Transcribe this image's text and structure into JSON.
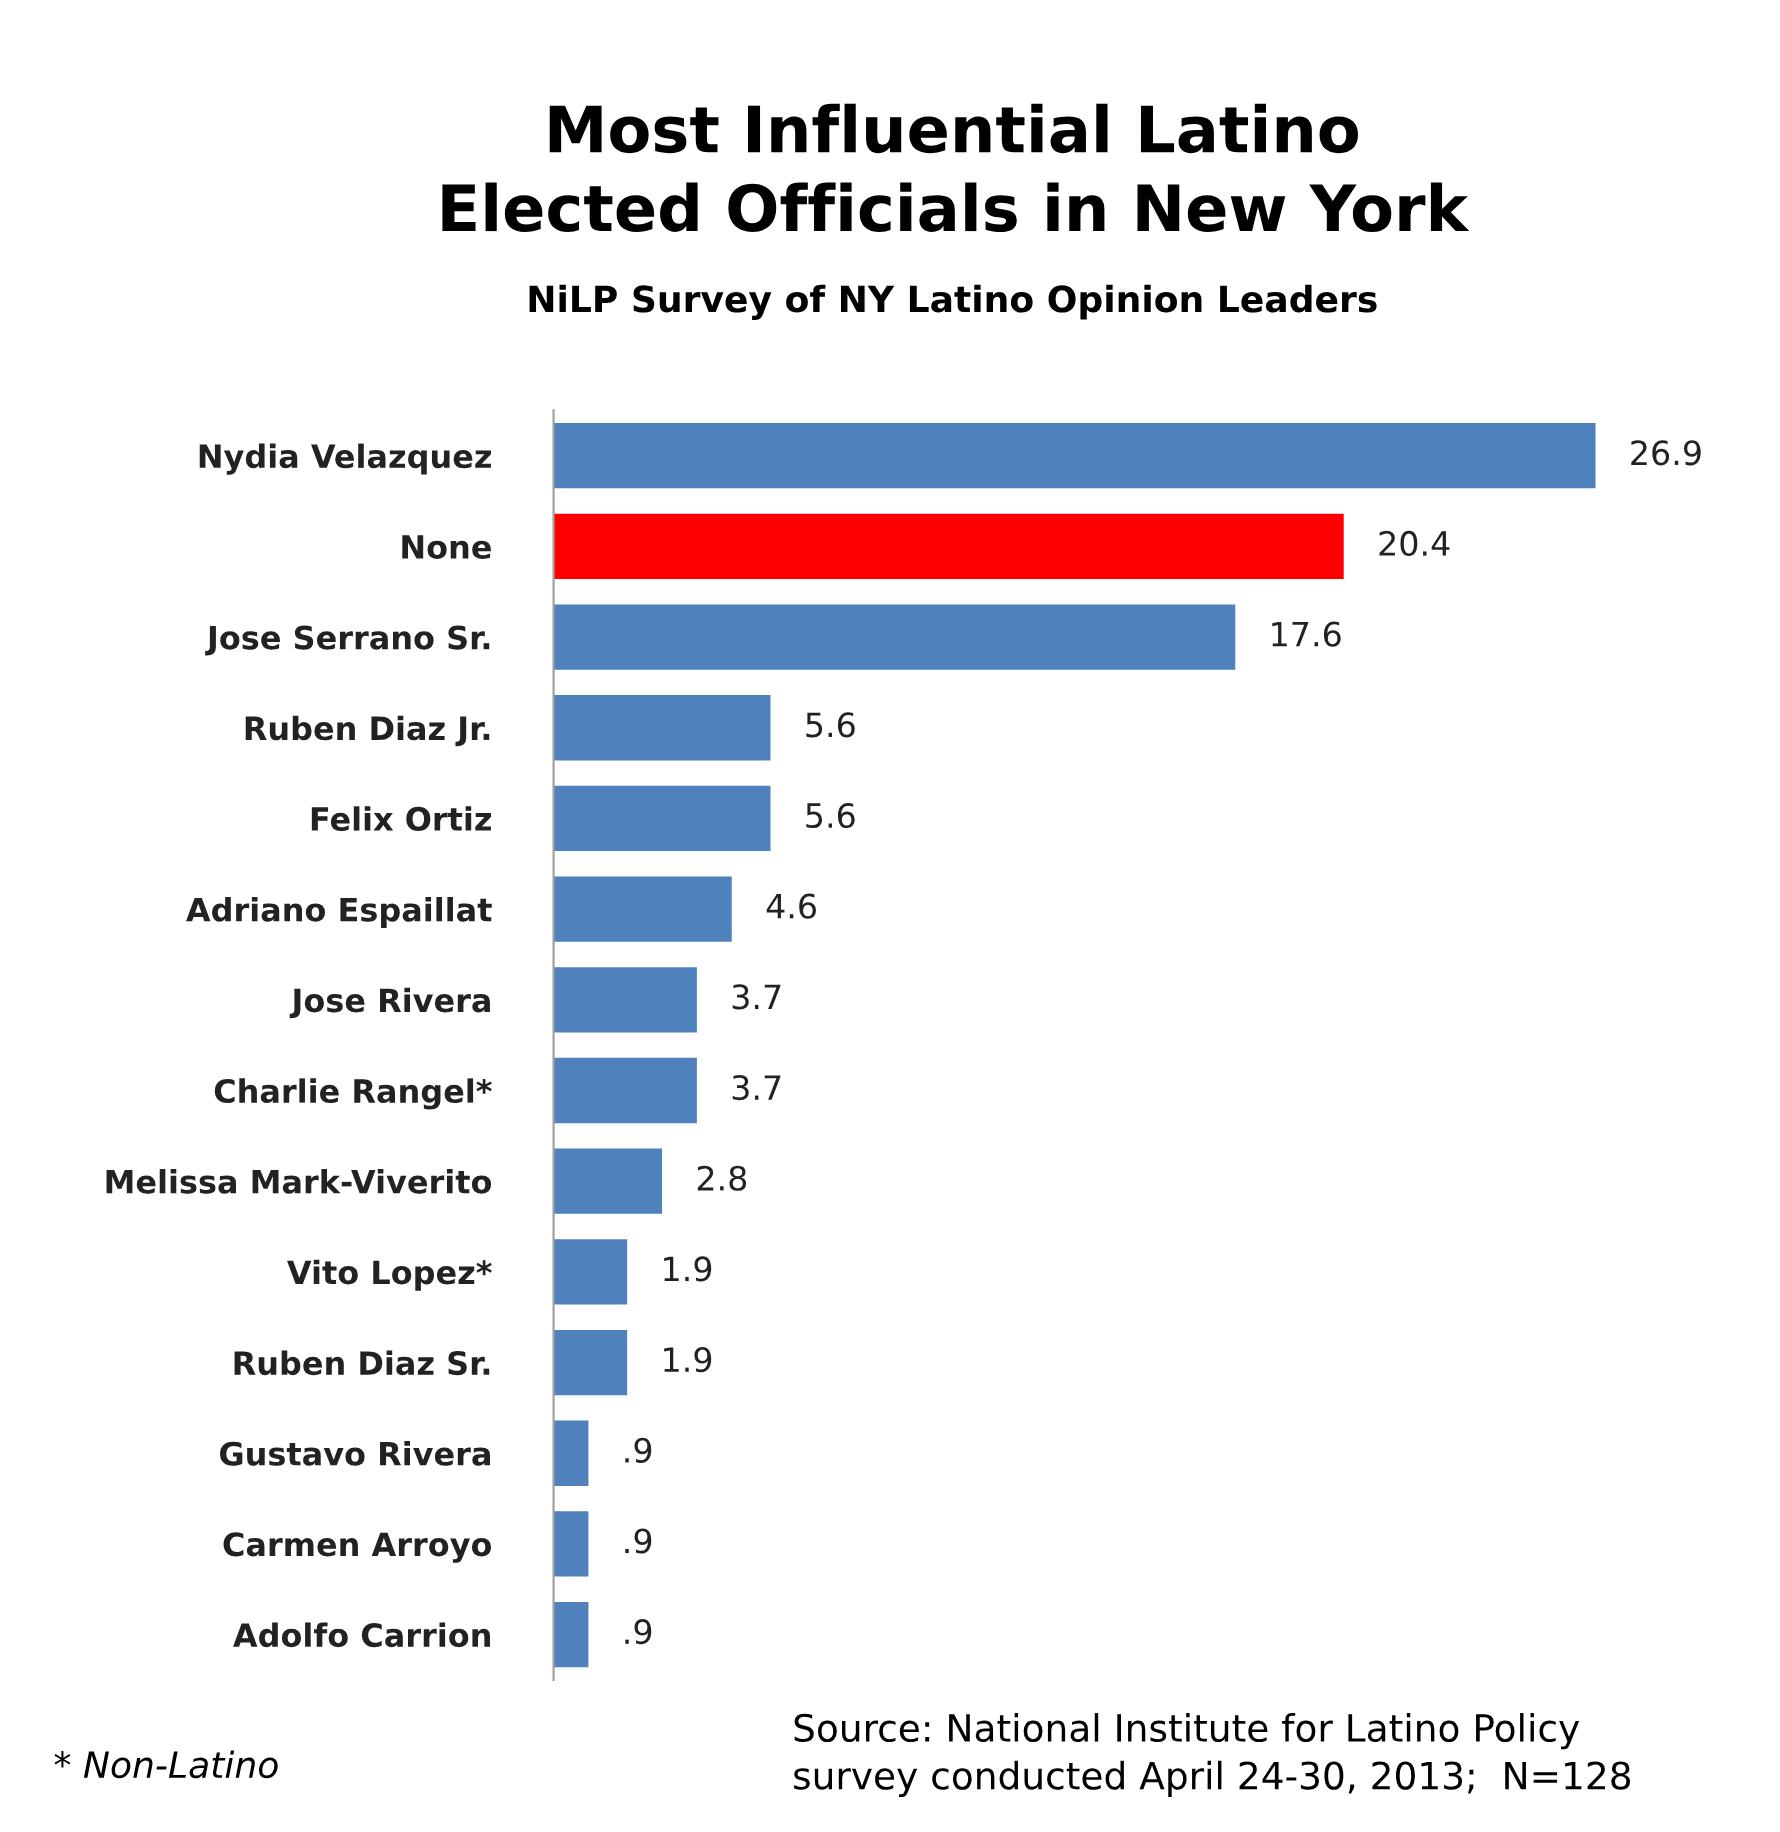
{
  "chart_data": {
    "type": "bar",
    "orientation": "horizontal",
    "title": "Most Influential Latino\nElected Officials in New York",
    "subtitle": "NiLP Survey of NY Latino Opinion Leaders",
    "categories": [
      "Nydia Velazquez",
      "None",
      "Jose Serrano Sr.",
      "Ruben Diaz Jr.",
      "Felix Ortiz",
      "Adriano Espaillat",
      "Jose Rivera",
      "Charlie Rangel*",
      "Melissa Mark-Viverito",
      "Vito Lopez*",
      "Ruben Diaz Sr.",
      "Gustavo Rivera",
      "Carmen Arroyo",
      "Adolfo Carrion"
    ],
    "values": [
      26.9,
      20.4,
      17.6,
      5.6,
      5.6,
      4.6,
      3.7,
      3.7,
      2.8,
      1.9,
      1.9,
      0.9,
      0.9,
      0.9
    ],
    "value_labels": [
      "26.9",
      "20.4",
      "17.6",
      "5.6",
      "5.6",
      "4.6",
      "3.7",
      "3.7",
      "2.8",
      "1.9",
      "1.9",
      ".9",
      ".9",
      ".9"
    ],
    "colors": [
      "#4f81bd",
      "#ff0000",
      "#4f81bd",
      "#4f81bd",
      "#4f81bd",
      "#4f81bd",
      "#4f81bd",
      "#4f81bd",
      "#4f81bd",
      "#4f81bd",
      "#4f81bd",
      "#4f81bd",
      "#4f81bd",
      "#4f81bd"
    ],
    "annotations": [
      "* Non-Latino",
      "Source: National Institute for Latino Policy\nsurvey conducted April 24-30, 2013;  N=128"
    ],
    "grid": false,
    "legend": false
  }
}
